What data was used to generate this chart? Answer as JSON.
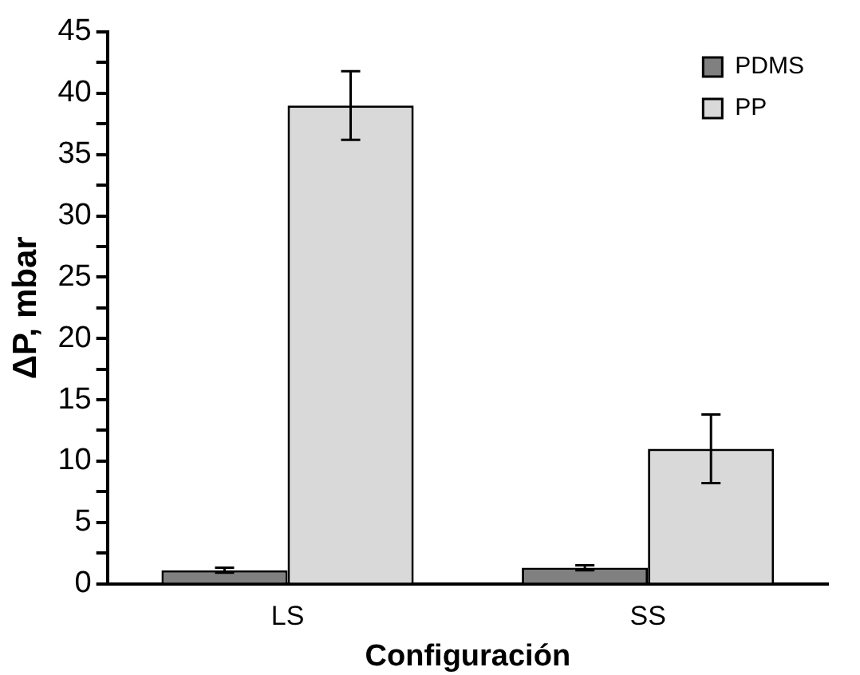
{
  "chart_data": {
    "type": "bar",
    "xlabel": "Configuración",
    "ylabel": "ΔP, mbar",
    "categories": [
      "LS",
      "SS"
    ],
    "series": [
      {
        "name": "PDMS",
        "color": "#808080",
        "values": [
          1.1,
          1.3
        ],
        "errors": [
          0.2,
          0.2
        ]
      },
      {
        "name": "PP",
        "color": "#d9d9d9",
        "values": [
          39,
          11
        ],
        "errors": [
          2.8,
          2.8
        ]
      }
    ],
    "ylim": [
      0,
      45
    ],
    "yticks": [
      0,
      {
        "value": 2.5,
        "label": null
      },
      5,
      {
        "value": 7.5,
        "label": null
      },
      10,
      {
        "value": 12.5,
        "label": null
      },
      15,
      {
        "value": 17.5,
        "label": null
      },
      20,
      {
        "value": 22.5,
        "label": null
      },
      25,
      {
        "value": 27.5,
        "label": null
      },
      30,
      {
        "value": 32.5,
        "label": null
      },
      35,
      {
        "value": 37.5,
        "label": null
      },
      40,
      {
        "value": 42.5,
        "label": null
      },
      45
    ],
    "grid": false,
    "legend": "top right"
  }
}
